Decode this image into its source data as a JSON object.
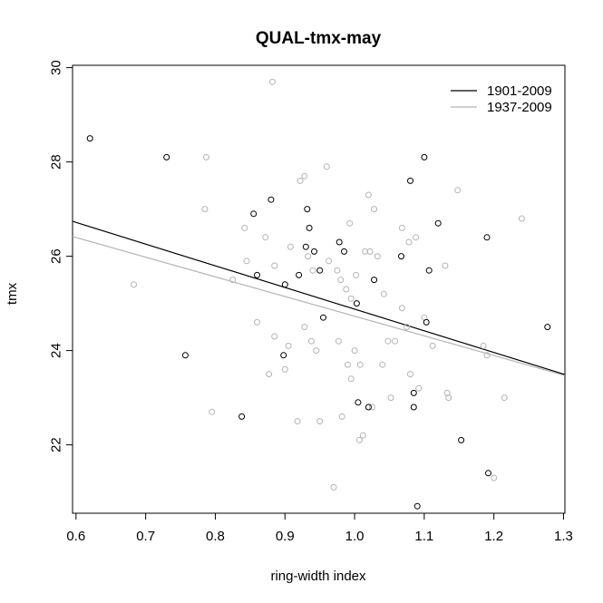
{
  "chart_data": {
    "type": "scatter",
    "title": "QUAL-tmx-may",
    "xlabel": "ring-width index",
    "ylabel": "tmx",
    "xlim": [
      0.595,
      1.302
    ],
    "ylim": [
      20.55,
      30.05
    ],
    "x_ticks": [
      0.6,
      0.7,
      0.8,
      0.9,
      1.0,
      1.1,
      1.2,
      1.3
    ],
    "x_tick_labels": [
      "0.6",
      "0.7",
      "0.8",
      "0.9",
      "1.0",
      "1.1",
      "1.2",
      "1.3"
    ],
    "y_ticks": [
      22,
      24,
      26,
      28,
      30
    ],
    "y_tick_labels": [
      "22",
      "24",
      "26",
      "28",
      "30"
    ],
    "legend": {
      "position": "top-right",
      "box": false
    },
    "series": [
      {
        "name": "1901-2009",
        "color": "#000000",
        "fit_line": {
          "x": [
            0.595,
            1.302
          ],
          "y": [
            26.74,
            23.49
          ]
        },
        "points": [
          [
            0.62,
            28.5
          ],
          [
            0.73,
            28.1
          ],
          [
            0.757,
            23.9
          ],
          [
            0.838,
            22.6
          ],
          [
            0.855,
            26.9
          ],
          [
            0.86,
            25.6
          ],
          [
            0.88,
            27.2
          ],
          [
            0.898,
            23.9
          ],
          [
            0.9,
            25.4
          ],
          [
            0.92,
            25.6
          ],
          [
            0.93,
            26.2
          ],
          [
            0.932,
            27.0
          ],
          [
            0.935,
            26.6
          ],
          [
            0.942,
            26.1
          ],
          [
            0.95,
            25.7
          ],
          [
            0.955,
            24.7
          ],
          [
            0.978,
            26.3
          ],
          [
            0.985,
            26.1
          ],
          [
            1.003,
            25.0
          ],
          [
            1.005,
            22.9
          ],
          [
            1.02,
            22.8
          ],
          [
            1.028,
            25.5
          ],
          [
            1.067,
            26.0
          ],
          [
            1.08,
            27.6
          ],
          [
            1.085,
            23.1
          ],
          [
            1.085,
            22.8
          ],
          [
            1.09,
            20.7
          ],
          [
            1.1,
            28.1
          ],
          [
            1.103,
            24.6
          ],
          [
            1.107,
            25.7
          ],
          [
            1.12,
            26.7
          ],
          [
            1.153,
            22.1
          ],
          [
            1.19,
            26.4
          ],
          [
            1.192,
            21.4
          ],
          [
            1.277,
            24.5
          ]
        ]
      },
      {
        "name": "1937-2009",
        "color": "#b4b4b4",
        "fit_line": {
          "x": [
            0.595,
            1.302
          ],
          "y": [
            26.42,
            23.47
          ]
        },
        "points": [
          [
            0.683,
            25.4
          ],
          [
            0.785,
            27.0
          ],
          [
            0.787,
            28.1
          ],
          [
            0.795,
            22.7
          ],
          [
            0.825,
            25.5
          ],
          [
            0.842,
            26.6
          ],
          [
            0.845,
            25.9
          ],
          [
            0.86,
            24.6
          ],
          [
            0.872,
            26.4
          ],
          [
            0.877,
            23.5
          ],
          [
            0.882,
            29.7
          ],
          [
            0.885,
            25.8
          ],
          [
            0.885,
            24.3
          ],
          [
            0.9,
            23.6
          ],
          [
            0.905,
            24.1
          ],
          [
            0.908,
            26.2
          ],
          [
            0.918,
            22.5
          ],
          [
            0.922,
            27.6
          ],
          [
            0.928,
            27.7
          ],
          [
            0.928,
            24.5
          ],
          [
            0.933,
            26.0
          ],
          [
            0.938,
            24.2
          ],
          [
            0.94,
            25.7
          ],
          [
            0.945,
            24.0
          ],
          [
            0.95,
            22.5
          ],
          [
            0.96,
            27.9
          ],
          [
            0.963,
            25.9
          ],
          [
            0.97,
            21.1
          ],
          [
            0.975,
            25.7
          ],
          [
            0.977,
            24.2
          ],
          [
            0.98,
            25.5
          ],
          [
            0.982,
            22.6
          ],
          [
            0.988,
            25.3
          ],
          [
            0.99,
            23.7
          ],
          [
            0.993,
            26.7
          ],
          [
            0.995,
            23.4
          ],
          [
            0.995,
            25.1
          ],
          [
            1.0,
            24.0
          ],
          [
            1.002,
            25.6
          ],
          [
            1.007,
            22.1
          ],
          [
            1.008,
            23.7
          ],
          [
            1.012,
            22.2
          ],
          [
            1.015,
            26.1
          ],
          [
            1.02,
            27.3
          ],
          [
            1.022,
            26.1
          ],
          [
            1.025,
            22.8
          ],
          [
            1.028,
            27.0
          ],
          [
            1.033,
            26.0
          ],
          [
            1.04,
            23.7
          ],
          [
            1.042,
            25.2
          ],
          [
            1.048,
            24.2
          ],
          [
            1.052,
            23.0
          ],
          [
            1.058,
            24.2
          ],
          [
            1.068,
            24.9
          ],
          [
            1.068,
            26.6
          ],
          [
            1.075,
            24.5
          ],
          [
            1.078,
            26.3
          ],
          [
            1.08,
            23.5
          ],
          [
            1.088,
            26.4
          ],
          [
            1.092,
            23.2
          ],
          [
            1.1,
            24.7
          ],
          [
            1.112,
            24.1
          ],
          [
            1.13,
            25.8
          ],
          [
            1.133,
            23.1
          ],
          [
            1.135,
            23.0
          ],
          [
            1.148,
            27.4
          ],
          [
            1.185,
            24.1
          ],
          [
            1.19,
            23.9
          ],
          [
            1.2,
            21.3
          ],
          [
            1.215,
            23.0
          ],
          [
            1.24,
            26.8
          ]
        ]
      }
    ]
  }
}
